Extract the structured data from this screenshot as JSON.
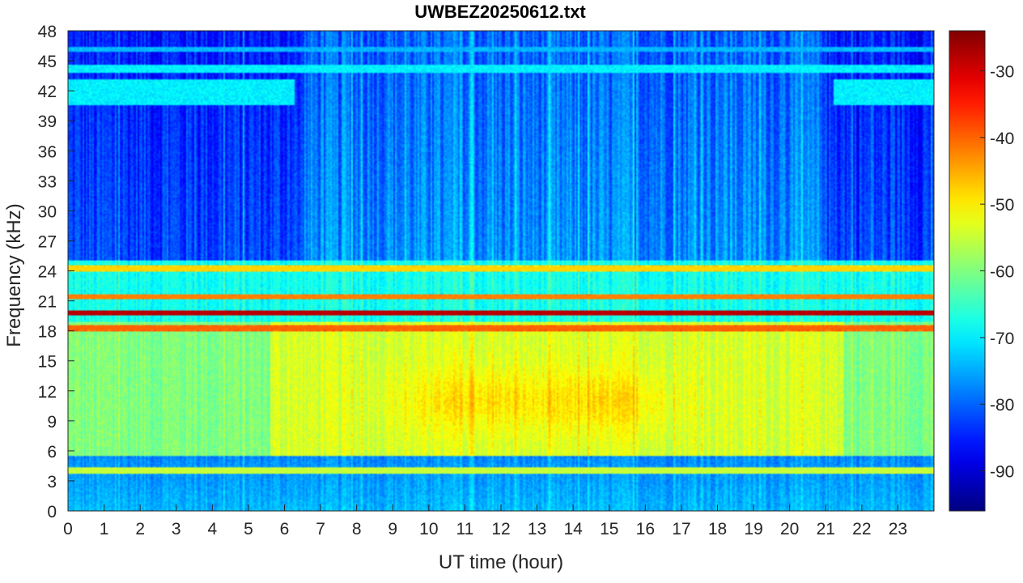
{
  "chart_data": {
    "type": "heatmap",
    "title": "UWBEZ20250612.txt",
    "xlabel": "UT time (hour)",
    "ylabel": "Frequency (kHz)",
    "xlim": [
      0,
      24
    ],
    "ylim": [
      0,
      48
    ],
    "x_ticks": [
      "0",
      "1",
      "2",
      "3",
      "4",
      "5",
      "6",
      "7",
      "8",
      "9",
      "10",
      "11",
      "12",
      "13",
      "14",
      "15",
      "16",
      "17",
      "18",
      "19",
      "20",
      "21",
      "22",
      "23"
    ],
    "y_ticks": [
      "0",
      "3",
      "6",
      "9",
      "12",
      "15",
      "18",
      "21",
      "24",
      "27",
      "30",
      "33",
      "36",
      "39",
      "42",
      "45",
      "48"
    ],
    "colorbar": {
      "colormap": "jet",
      "range": [
        -96,
        -24
      ],
      "ticks": [
        "-90",
        "-80",
        "-70",
        "-60",
        "-50",
        "-40",
        "-30"
      ]
    },
    "bands": [
      {
        "freq": 19.8,
        "level": -28
      },
      {
        "freq": 18.3,
        "level": -40
      },
      {
        "freq": 21.4,
        "level": -42
      },
      {
        "freq": 24.2,
        "level": -48
      },
      {
        "freq": 4.0,
        "level": -55
      }
    ]
  }
}
